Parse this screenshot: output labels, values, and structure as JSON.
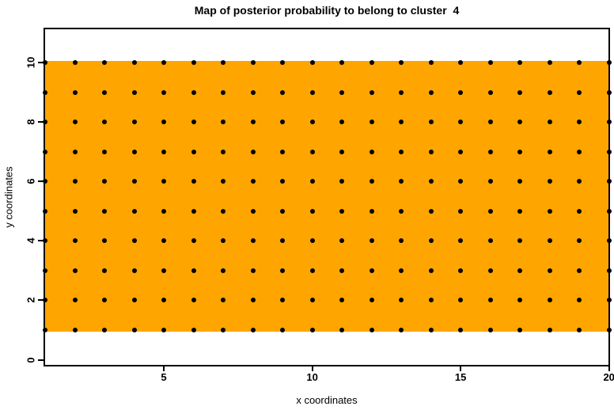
{
  "chart_data": {
    "type": "heatmap",
    "title": "Map of posterior probability to belong to cluster  4",
    "cluster_number": 4,
    "xlabel": "x coordinates",
    "ylabel": "y coordinates",
    "xlim": [
      1,
      20
    ],
    "ylim": [
      0,
      11
    ],
    "x_ticks": [
      5,
      10,
      15,
      20
    ],
    "y_ticks": [
      0,
      2,
      4,
      6,
      8,
      10
    ],
    "grid": false,
    "legend": "none",
    "heat_region": {
      "x_min": 1,
      "x_max": 20,
      "y_min": 1,
      "y_max": 10,
      "fill_color": "#FFA500"
    },
    "points": {
      "layout": "full-grid",
      "x_values": [
        1,
        2,
        3,
        4,
        5,
        6,
        7,
        8,
        9,
        10,
        11,
        12,
        13,
        14,
        15,
        16,
        17,
        18,
        19,
        20
      ],
      "y_values": [
        1,
        2,
        3,
        4,
        5,
        6,
        7,
        8,
        9,
        10
      ],
      "marker": "filled-circle",
      "color": "#000000"
    },
    "colors": {
      "background": "#FFFFFF",
      "axis": "#000000",
      "region_fill": "#FFA500",
      "point": "#000000",
      "title_text": "#000000"
    }
  }
}
